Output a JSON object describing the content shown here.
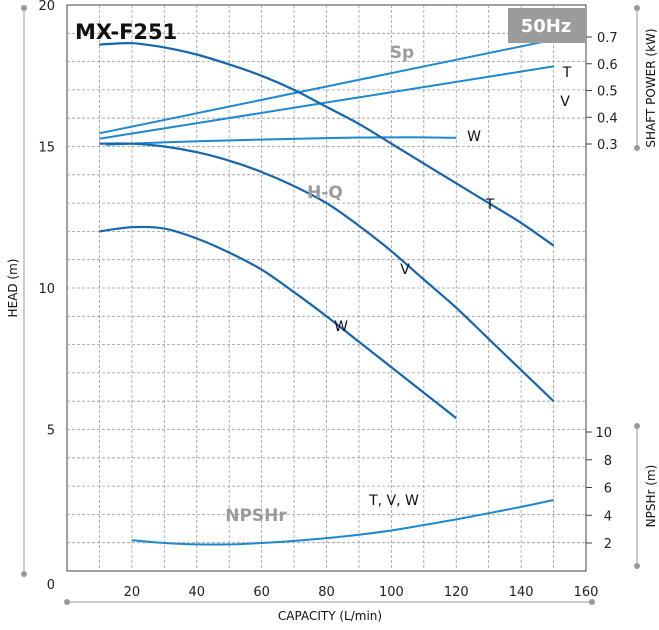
{
  "chart_data": {
    "type": "line",
    "title": "MX-F251",
    "frequency_badge": "50Hz",
    "xlabel": "CAPACITY (L/min)",
    "ylabel": "HEAD (m)",
    "y2label": "SHAFT POWER (kW)",
    "y3label": "NPSHr (m)",
    "xlim": [
      0,
      160
    ],
    "ylim": [
      0,
      20
    ],
    "power_lim": [
      0.3,
      0.7
    ],
    "npsh_lim": [
      2,
      10
    ],
    "x_ticks": [
      "20",
      "40",
      "60",
      "80",
      "100",
      "120",
      "140",
      "160"
    ],
    "y_ticks": [
      "0",
      "5",
      "10",
      "15",
      "20"
    ],
    "power_ticks": [
      "0.3",
      "0.4",
      "0.5",
      "0.6",
      "0.7"
    ],
    "npsh_ticks": [
      "2",
      "4",
      "6",
      "8",
      "10"
    ],
    "grid": true,
    "colors": {
      "curve": "#1565b0",
      "power": "#1e88d0",
      "npsh": "#1e88d0",
      "badge": "#9b9b9b",
      "section": "#9b9b9b"
    },
    "section_labels": {
      "sp": "Sp",
      "hq": "H-Q",
      "npshr": "NPSHr"
    },
    "head_series": [
      {
        "name": "T",
        "x": [
          10,
          20,
          30,
          40,
          50,
          60,
          70,
          80,
          90,
          100,
          110,
          120,
          130,
          140,
          150
        ],
        "y": [
          18.6,
          18.65,
          18.5,
          18.25,
          17.9,
          17.5,
          17.0,
          16.4,
          15.8,
          15.1,
          14.4,
          13.7,
          13.0,
          12.3,
          11.5
        ]
      },
      {
        "name": "V",
        "x": [
          10,
          20,
          30,
          40,
          50,
          60,
          70,
          80,
          90,
          100,
          110,
          120,
          130,
          140,
          150
        ],
        "y": [
          15.1,
          15.1,
          15.0,
          14.8,
          14.5,
          14.1,
          13.6,
          13.0,
          12.2,
          11.3,
          10.3,
          9.3,
          8.2,
          7.1,
          6.0
        ]
      },
      {
        "name": "W",
        "x": [
          10,
          20,
          30,
          40,
          50,
          60,
          70,
          80,
          90,
          100,
          110,
          120
        ],
        "y": [
          12.0,
          12.15,
          12.1,
          11.75,
          11.25,
          10.65,
          9.85,
          9.0,
          8.1,
          7.2,
          6.3,
          5.4
        ]
      }
    ],
    "power_series": [
      {
        "name": "T",
        "x": [
          10,
          150
        ],
        "y": [
          0.34,
          0.69
        ]
      },
      {
        "name": "V",
        "x": [
          10,
          150
        ],
        "y": [
          0.32,
          0.59
        ]
      },
      {
        "name": "W",
        "x": [
          12,
          40,
          80,
          105,
          120
        ],
        "y": [
          0.297,
          0.31,
          0.322,
          0.325,
          0.323
        ]
      }
    ],
    "npsh_series": [
      {
        "name": "T, V, W",
        "x": [
          20,
          30,
          40,
          50,
          60,
          70,
          80,
          90,
          100,
          110,
          120,
          130,
          140,
          150
        ],
        "y": [
          2.2,
          2.0,
          1.9,
          1.9,
          2.0,
          2.15,
          2.35,
          2.6,
          2.9,
          3.3,
          3.7,
          4.15,
          4.6,
          5.1
        ]
      }
    ],
    "curve_labels": {
      "head_T": "T",
      "head_V": "V",
      "head_W": "W",
      "power_T": "T",
      "power_V": "V",
      "power_W": "W",
      "npsh": "T, V, W"
    }
  }
}
